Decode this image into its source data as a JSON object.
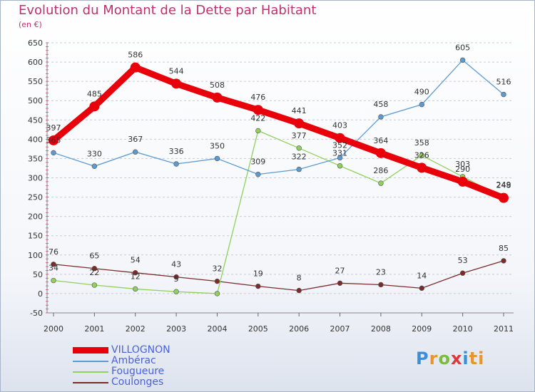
{
  "header": {
    "title": "Evolution du Montant de la Dette par Habitant",
    "subtitle": "(en €)"
  },
  "logo": {
    "text": "Proxiti",
    "letters": [
      "P",
      "r",
      "o",
      "x",
      "i",
      "ti"
    ]
  },
  "chart_data": {
    "type": "line",
    "title": "Evolution du Montant de la Dette par Habitant",
    "ylabel": "(en €)",
    "x": [
      "2000",
      "2001",
      "2002",
      "2003",
      "2004",
      "2005",
      "2006",
      "2007",
      "2008",
      "2009",
      "2010",
      "2011"
    ],
    "ylim": [
      -50,
      650
    ],
    "yticks": [
      -50,
      0,
      50,
      100,
      150,
      200,
      250,
      300,
      350,
      400,
      450,
      500,
      550,
      600,
      650
    ],
    "grid": true,
    "legend_position": "bottom-left",
    "series": [
      {
        "name": "VILLOGNON",
        "color": "#e8000b",
        "values": [
          397,
          485,
          586,
          544,
          508,
          476,
          441,
          403,
          364,
          326,
          290,
          248
        ]
      },
      {
        "name": "Ambérac",
        "color": "#5b9bd0",
        "values": [
          365,
          330,
          367,
          336,
          350,
          309,
          322,
          352,
          458,
          490,
          605,
          516
        ]
      },
      {
        "name": "Fougueure",
        "color": "#8fd15a",
        "values": [
          34,
          22,
          12,
          5,
          0,
          422,
          377,
          331,
          286,
          358,
          303,
          249
        ]
      },
      {
        "name": "Coulonges",
        "color": "#7a2b2b",
        "values": [
          76,
          65,
          54,
          43,
          32,
          19,
          8,
          27,
          23,
          14,
          53,
          85
        ]
      }
    ],
    "data_labels": {
      "VILLOGNON": [
        "397",
        "485",
        "586",
        "544",
        "508",
        "476",
        "441",
        "403",
        "364",
        "326",
        "290",
        "248"
      ],
      "Ambérac": [
        "365",
        "330",
        "367",
        "336",
        "350",
        "309",
        "322",
        "352",
        "458",
        "490",
        "605",
        "516"
      ],
      "Fougueure": [
        "34",
        "22",
        "12",
        "5",
        "",
        "422",
        "377",
        "331",
        "286",
        "358",
        "303",
        "249"
      ],
      "Coulonges": [
        "76",
        "65",
        "54",
        "43",
        "32",
        "19",
        "8",
        "27",
        "23",
        "14",
        "53",
        "85"
      ]
    }
  }
}
